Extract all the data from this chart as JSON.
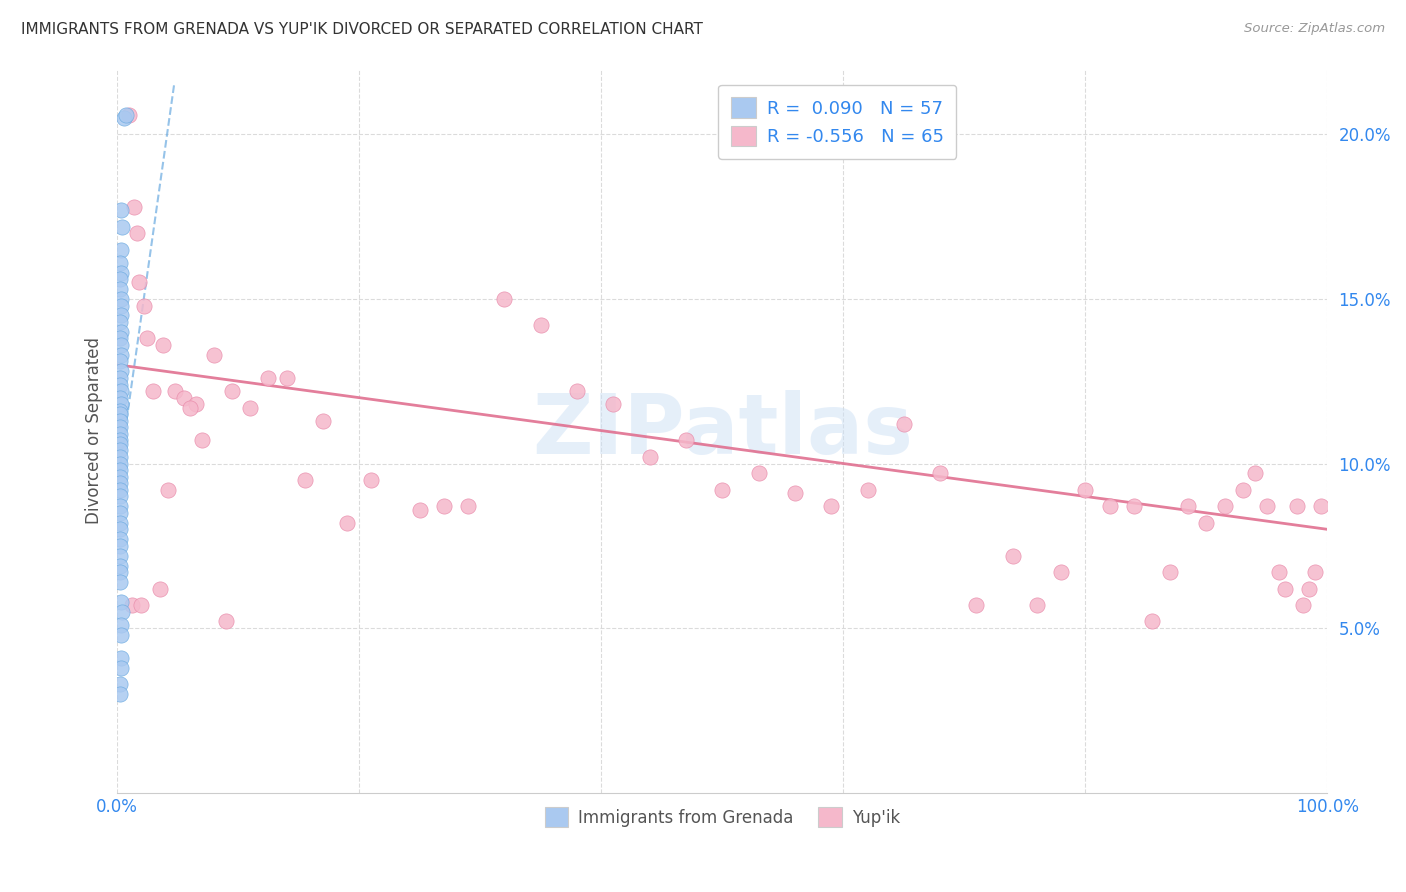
{
  "title": "IMMIGRANTS FROM GRENADA VS YUP'IK DIVORCED OR SEPARATED CORRELATION CHART",
  "source": "Source: ZipAtlas.com",
  "ylabel": "Divorced or Separated",
  "ytick_labels": [
    "5.0%",
    "10.0%",
    "15.0%",
    "20.0%"
  ],
  "ytick_values": [
    0.05,
    0.1,
    0.15,
    0.2
  ],
  "xlim": [
    0.0,
    1.0
  ],
  "ylim": [
    0.0,
    0.22
  ],
  "legend_label1": "Immigrants from Grenada",
  "legend_label2": "Yup'ik",
  "r1": "0.090",
  "n1": "57",
  "r2": "-0.556",
  "n2": "65",
  "blue_color": "#aac9f0",
  "blue_color_edge": "#6aaae0",
  "pink_color": "#f5b8cb",
  "pink_color_edge": "#e888a8",
  "watermark_color": "#cce0f5",
  "blue_scatter_x": [
    0.006,
    0.007,
    0.003,
    0.004,
    0.003,
    0.002,
    0.003,
    0.002,
    0.002,
    0.003,
    0.003,
    0.003,
    0.002,
    0.003,
    0.002,
    0.003,
    0.003,
    0.002,
    0.003,
    0.002,
    0.002,
    0.003,
    0.002,
    0.003,
    0.002,
    0.002,
    0.002,
    0.002,
    0.002,
    0.002,
    0.002,
    0.002,
    0.002,
    0.002,
    0.002,
    0.002,
    0.002,
    0.002,
    0.002,
    0.002,
    0.002,
    0.002,
    0.002,
    0.002,
    0.002,
    0.002,
    0.002,
    0.002,
    0.002,
    0.003,
    0.004,
    0.003,
    0.003,
    0.003,
    0.003,
    0.002,
    0.002
  ],
  "blue_scatter_y": [
    0.205,
    0.206,
    0.177,
    0.172,
    0.165,
    0.161,
    0.158,
    0.156,
    0.153,
    0.15,
    0.148,
    0.145,
    0.143,
    0.14,
    0.138,
    0.136,
    0.133,
    0.131,
    0.128,
    0.126,
    0.124,
    0.122,
    0.12,
    0.118,
    0.116,
    0.115,
    0.113,
    0.111,
    0.109,
    0.107,
    0.106,
    0.104,
    0.102,
    0.1,
    0.098,
    0.096,
    0.094,
    0.092,
    0.09,
    0.087,
    0.085,
    0.082,
    0.08,
    0.077,
    0.075,
    0.072,
    0.069,
    0.067,
    0.064,
    0.058,
    0.055,
    0.051,
    0.048,
    0.041,
    0.038,
    0.033,
    0.03
  ],
  "pink_scatter_x": [
    0.01,
    0.014,
    0.016,
    0.018,
    0.022,
    0.025,
    0.03,
    0.038,
    0.042,
    0.048,
    0.055,
    0.065,
    0.07,
    0.08,
    0.095,
    0.11,
    0.125,
    0.14,
    0.155,
    0.17,
    0.19,
    0.21,
    0.25,
    0.27,
    0.29,
    0.32,
    0.35,
    0.38,
    0.41,
    0.44,
    0.47,
    0.5,
    0.53,
    0.56,
    0.59,
    0.62,
    0.65,
    0.68,
    0.71,
    0.74,
    0.76,
    0.78,
    0.8,
    0.82,
    0.84,
    0.855,
    0.87,
    0.885,
    0.9,
    0.915,
    0.93,
    0.94,
    0.95,
    0.96,
    0.965,
    0.975,
    0.98,
    0.985,
    0.99,
    0.995,
    0.012,
    0.02,
    0.035,
    0.06,
    0.09
  ],
  "pink_scatter_y": [
    0.206,
    0.178,
    0.17,
    0.155,
    0.148,
    0.138,
    0.122,
    0.136,
    0.092,
    0.122,
    0.12,
    0.118,
    0.107,
    0.133,
    0.122,
    0.117,
    0.126,
    0.126,
    0.095,
    0.113,
    0.082,
    0.095,
    0.086,
    0.087,
    0.087,
    0.15,
    0.142,
    0.122,
    0.118,
    0.102,
    0.107,
    0.092,
    0.097,
    0.091,
    0.087,
    0.092,
    0.112,
    0.097,
    0.057,
    0.072,
    0.057,
    0.067,
    0.092,
    0.087,
    0.087,
    0.052,
    0.067,
    0.087,
    0.082,
    0.087,
    0.092,
    0.097,
    0.087,
    0.067,
    0.062,
    0.087,
    0.057,
    0.062,
    0.067,
    0.087,
    0.057,
    0.057,
    0.062,
    0.117,
    0.052
  ],
  "blue_trend_x0": 0.0,
  "blue_trend_y0": 0.093,
  "blue_trend_x1": 0.047,
  "blue_trend_y1": 0.215,
  "pink_trend_x0": 0.0,
  "pink_trend_y0": 0.13,
  "pink_trend_x1": 1.0,
  "pink_trend_y1": 0.08
}
